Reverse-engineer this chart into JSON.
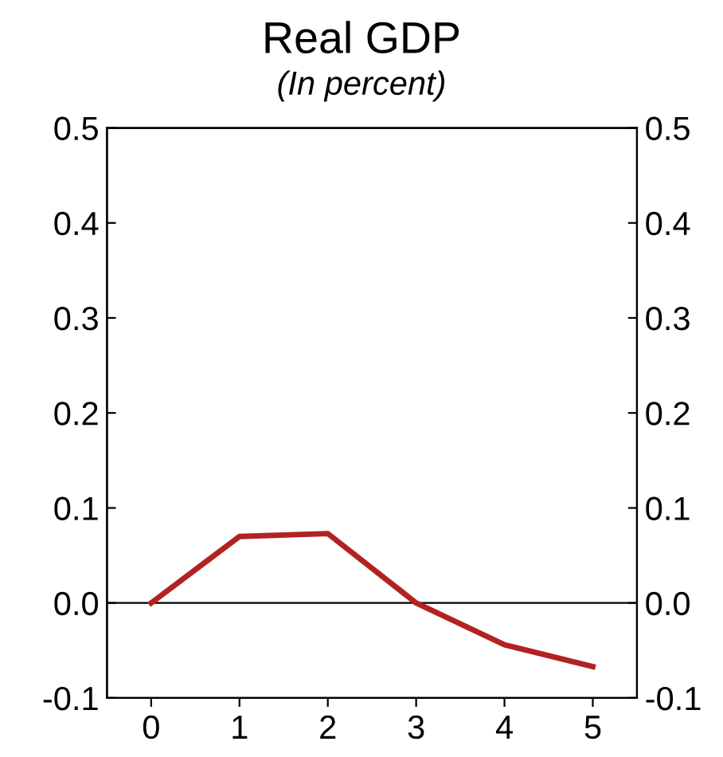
{
  "chart_data": {
    "type": "line",
    "title": "Real GDP",
    "subtitle": "(In percent)",
    "x": [
      0,
      1,
      2,
      3,
      4,
      5
    ],
    "series": [
      {
        "color": "#b22222",
        "values": [
          0.0,
          0.07,
          0.073,
          0.0,
          -0.044,
          -0.067
        ]
      }
    ],
    "xlim": [
      -0.5,
      5.5
    ],
    "xticks": [
      0,
      1,
      2,
      3,
      4,
      5
    ],
    "ylim": [
      -0.1,
      0.5
    ],
    "yticks": [
      -0.1,
      {
        "value": 0.0,
        "label": "0.0"
      },
      0.1,
      0.2,
      0.3,
      0.4,
      0.5
    ],
    "y2lim": [
      -0.1,
      0.5
    ],
    "y2ticks": [
      -0.1,
      {
        "value": 0.0,
        "label": "0.0"
      },
      0.1,
      0.2,
      0.3,
      0.4,
      0.5
    ],
    "ref_lines": [
      {
        "axis": "y",
        "value": 0.0,
        "color": "#000000"
      }
    ],
    "grid": false,
    "legend": false,
    "marker": "none",
    "line_style": "solid"
  }
}
